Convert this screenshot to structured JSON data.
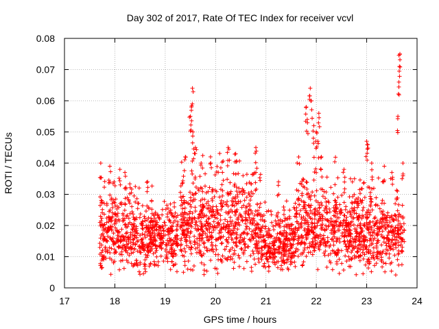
{
  "chart_data": {
    "type": "scatter",
    "title": "Day 302 of 2017, Rate Of TEC Index for receiver vcvl",
    "xlabel": "GPS time / hours",
    "ylabel": "ROTI / TECUs",
    "xlim": [
      17,
      24
    ],
    "ylim": [
      0,
      0.08
    ],
    "x_ticks": [
      "17",
      "18",
      "19",
      "20",
      "21",
      "22",
      "23",
      "24"
    ],
    "y_ticks": [
      "0",
      "0.01",
      "0.02",
      "0.03",
      "0.04",
      "0.05",
      "0.06",
      "0.07",
      "0.08"
    ],
    "grid": true,
    "marker": "+",
    "color": "#ff0000",
    "series": [
      {
        "name": "ROTI",
        "segments": [
          {
            "x_start": 17.7,
            "x_end": 18.75,
            "base_low": 0.004,
            "base_high": 0.032,
            "upper": 0.035
          },
          {
            "x_start": 18.75,
            "x_end": 19.25,
            "base_low": 0.005,
            "base_high": 0.028,
            "upper": 0.03
          },
          {
            "x_start": 19.3,
            "x_end": 20.9,
            "base_low": 0.004,
            "base_high": 0.038,
            "upper": 0.044
          },
          {
            "x_start": 20.9,
            "x_end": 21.6,
            "base_low": 0.005,
            "base_high": 0.025,
            "upper": 0.029
          },
          {
            "x_start": 21.6,
            "x_end": 22.4,
            "base_low": 0.005,
            "base_high": 0.035,
            "upper": 0.042
          },
          {
            "x_start": 22.4,
            "x_end": 23.75,
            "base_low": 0.004,
            "base_high": 0.032,
            "upper": 0.036
          }
        ],
        "peaks": [
          {
            "x": 17.72,
            "y": 0.04
          },
          {
            "x": 17.9,
            "y": 0.039
          },
          {
            "x": 18.1,
            "y": 0.038
          },
          {
            "x": 18.2,
            "y": 0.037
          },
          {
            "x": 18.65,
            "y": 0.034
          },
          {
            "x": 19.4,
            "y": 0.042
          },
          {
            "x": 19.5,
            "y": 0.055
          },
          {
            "x": 19.52,
            "y": 0.058
          },
          {
            "x": 19.54,
            "y": 0.064
          },
          {
            "x": 19.55,
            "y": 0.05
          },
          {
            "x": 19.6,
            "y": 0.045
          },
          {
            "x": 19.9,
            "y": 0.042
          },
          {
            "x": 20.25,
            "y": 0.045
          },
          {
            "x": 20.4,
            "y": 0.043
          },
          {
            "x": 20.8,
            "y": 0.045
          },
          {
            "x": 20.8,
            "y": 0.037
          },
          {
            "x": 21.25,
            "y": 0.034
          },
          {
            "x": 21.8,
            "y": 0.058
          },
          {
            "x": 21.82,
            "y": 0.054
          },
          {
            "x": 21.88,
            "y": 0.064
          },
          {
            "x": 21.9,
            "y": 0.06
          },
          {
            "x": 21.95,
            "y": 0.052
          },
          {
            "x": 22.0,
            "y": 0.05
          },
          {
            "x": 22.05,
            "y": 0.056
          },
          {
            "x": 22.03,
            "y": 0.047
          },
          {
            "x": 22.1,
            "y": 0.042
          },
          {
            "x": 22.55,
            "y": 0.038
          },
          {
            "x": 23.0,
            "y": 0.047
          },
          {
            "x": 23.02,
            "y": 0.046
          },
          {
            "x": 23.1,
            "y": 0.04
          },
          {
            "x": 23.35,
            "y": 0.039
          },
          {
            "x": 23.5,
            "y": 0.037
          },
          {
            "x": 23.62,
            "y": 0.055
          },
          {
            "x": 23.64,
            "y": 0.066
          },
          {
            "x": 23.65,
            "y": 0.071
          },
          {
            "x": 23.66,
            "y": 0.075
          },
          {
            "x": 23.72,
            "y": 0.04
          }
        ]
      }
    ]
  }
}
